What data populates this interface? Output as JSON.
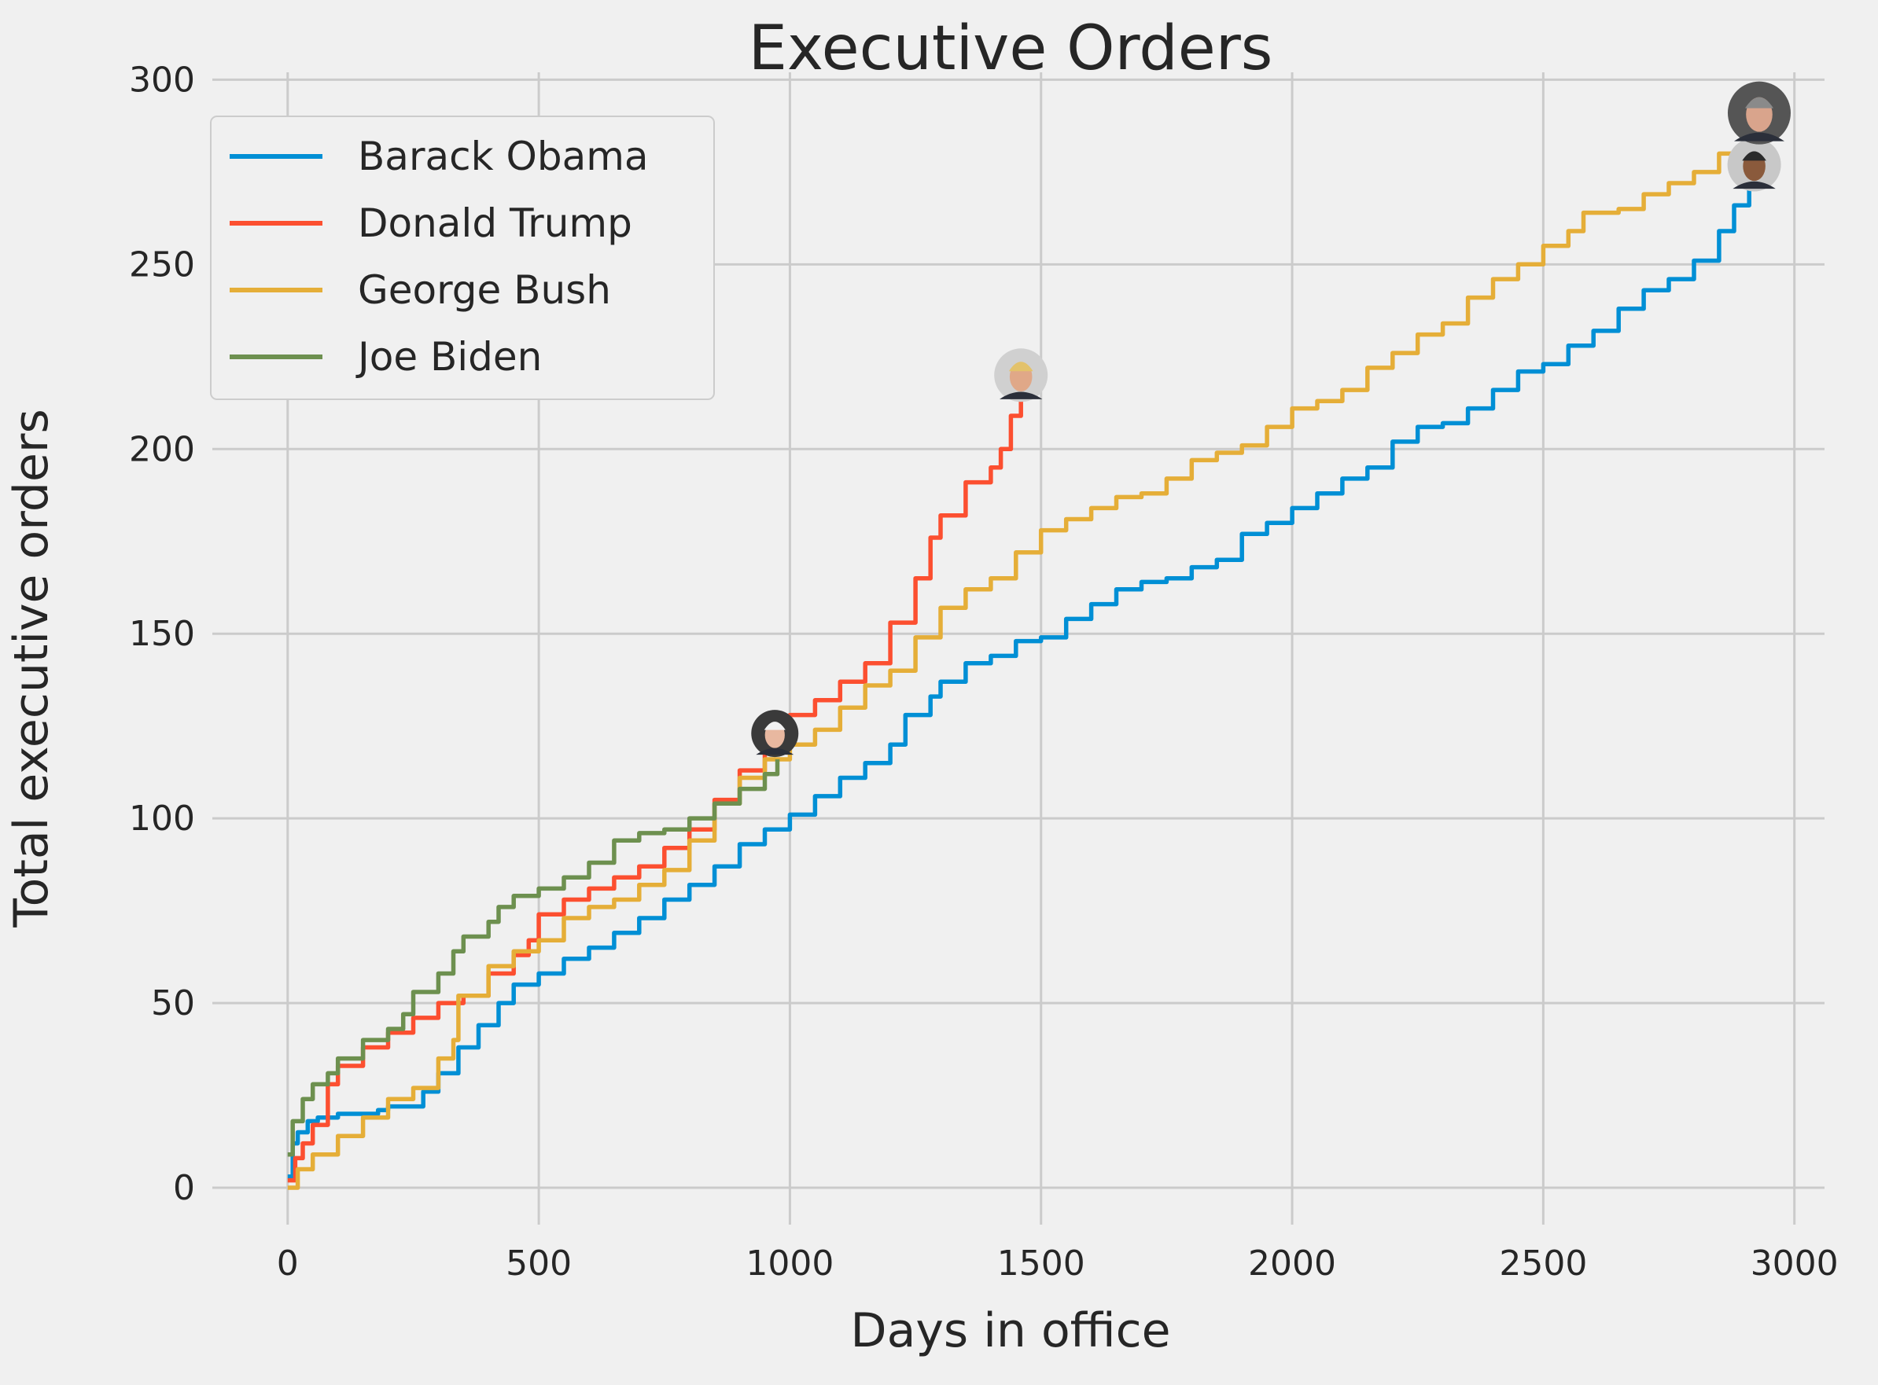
{
  "chart_data": {
    "type": "line",
    "title": "Executive Orders",
    "xlabel": "Days in office",
    "ylabel": "Total executive orders",
    "xlim": [
      -150,
      3060
    ],
    "ylim": [
      -10,
      302
    ],
    "xticks": [
      0,
      500,
      1000,
      1500,
      2000,
      2500,
      3000
    ],
    "yticks": [
      0,
      50,
      100,
      150,
      200,
      250,
      300
    ],
    "grid": true,
    "legend_position": "top-left",
    "series": [
      {
        "name": "Barack Obama",
        "color": "#008fd5",
        "icon": "obama-portrait",
        "points": [
          [
            0,
            3
          ],
          [
            10,
            12
          ],
          [
            20,
            15
          ],
          [
            40,
            18
          ],
          [
            60,
            19
          ],
          [
            100,
            20
          ],
          [
            180,
            21
          ],
          [
            200,
            22
          ],
          [
            250,
            22
          ],
          [
            270,
            26
          ],
          [
            300,
            31
          ],
          [
            340,
            38
          ],
          [
            380,
            44
          ],
          [
            420,
            50
          ],
          [
            450,
            55
          ],
          [
            500,
            58
          ],
          [
            550,
            62
          ],
          [
            600,
            65
          ],
          [
            650,
            69
          ],
          [
            700,
            73
          ],
          [
            750,
            78
          ],
          [
            800,
            82
          ],
          [
            850,
            87
          ],
          [
            900,
            93
          ],
          [
            950,
            97
          ],
          [
            1000,
            101
          ],
          [
            1050,
            106
          ],
          [
            1100,
            111
          ],
          [
            1150,
            115
          ],
          [
            1200,
            120
          ],
          [
            1230,
            128
          ],
          [
            1280,
            133
          ],
          [
            1300,
            137
          ],
          [
            1350,
            142
          ],
          [
            1400,
            144
          ],
          [
            1450,
            148
          ],
          [
            1500,
            149
          ],
          [
            1550,
            154
          ],
          [
            1600,
            158
          ],
          [
            1650,
            162
          ],
          [
            1700,
            164
          ],
          [
            1750,
            165
          ],
          [
            1800,
            168
          ],
          [
            1850,
            170
          ],
          [
            1900,
            177
          ],
          [
            1950,
            180
          ],
          [
            2000,
            184
          ],
          [
            2050,
            188
          ],
          [
            2100,
            192
          ],
          [
            2150,
            195
          ],
          [
            2200,
            202
          ],
          [
            2250,
            206
          ],
          [
            2300,
            207
          ],
          [
            2350,
            211
          ],
          [
            2400,
            216
          ],
          [
            2450,
            221
          ],
          [
            2500,
            223
          ],
          [
            2550,
            228
          ],
          [
            2600,
            232
          ],
          [
            2650,
            238
          ],
          [
            2700,
            243
          ],
          [
            2750,
            246
          ],
          [
            2800,
            251
          ],
          [
            2850,
            259
          ],
          [
            2880,
            266
          ],
          [
            2910,
            276
          ]
        ]
      },
      {
        "name": "Donald Trump",
        "color": "#fc4f30",
        "icon": "trump-portrait",
        "points": [
          [
            0,
            2
          ],
          [
            15,
            8
          ],
          [
            30,
            12
          ],
          [
            50,
            17
          ],
          [
            80,
            28
          ],
          [
            100,
            33
          ],
          [
            150,
            38
          ],
          [
            200,
            42
          ],
          [
            250,
            46
          ],
          [
            300,
            50
          ],
          [
            350,
            52
          ],
          [
            400,
            58
          ],
          [
            450,
            63
          ],
          [
            480,
            67
          ],
          [
            500,
            74
          ],
          [
            550,
            78
          ],
          [
            600,
            81
          ],
          [
            650,
            84
          ],
          [
            700,
            87
          ],
          [
            750,
            92
          ],
          [
            800,
            97
          ],
          [
            850,
            105
          ],
          [
            900,
            113
          ],
          [
            950,
            120
          ],
          [
            1000,
            128
          ],
          [
            1050,
            132
          ],
          [
            1100,
            137
          ],
          [
            1150,
            142
          ],
          [
            1200,
            153
          ],
          [
            1250,
            165
          ],
          [
            1280,
            176
          ],
          [
            1300,
            182
          ],
          [
            1350,
            191
          ],
          [
            1400,
            195
          ],
          [
            1420,
            200
          ],
          [
            1440,
            209
          ],
          [
            1460,
            218
          ]
        ]
      },
      {
        "name": "George Bush",
        "color": "#e5ae38",
        "icon": "bush-portrait",
        "points": [
          [
            0,
            0
          ],
          [
            20,
            5
          ],
          [
            50,
            9
          ],
          [
            100,
            14
          ],
          [
            150,
            19
          ],
          [
            200,
            24
          ],
          [
            250,
            27
          ],
          [
            300,
            35
          ],
          [
            330,
            40
          ],
          [
            340,
            52
          ],
          [
            400,
            60
          ],
          [
            450,
            64
          ],
          [
            500,
            67
          ],
          [
            550,
            73
          ],
          [
            600,
            76
          ],
          [
            650,
            78
          ],
          [
            700,
            82
          ],
          [
            750,
            86
          ],
          [
            800,
            94
          ],
          [
            850,
            104
          ],
          [
            900,
            111
          ],
          [
            950,
            116
          ],
          [
            1000,
            120
          ],
          [
            1050,
            124
          ],
          [
            1100,
            130
          ],
          [
            1150,
            136
          ],
          [
            1200,
            140
          ],
          [
            1250,
            149
          ],
          [
            1300,
            157
          ],
          [
            1350,
            162
          ],
          [
            1400,
            165
          ],
          [
            1450,
            172
          ],
          [
            1500,
            178
          ],
          [
            1550,
            181
          ],
          [
            1600,
            184
          ],
          [
            1650,
            187
          ],
          [
            1700,
            188
          ],
          [
            1750,
            192
          ],
          [
            1800,
            197
          ],
          [
            1850,
            199
          ],
          [
            1900,
            201
          ],
          [
            1950,
            206
          ],
          [
            2000,
            211
          ],
          [
            2050,
            213
          ],
          [
            2100,
            216
          ],
          [
            2150,
            222
          ],
          [
            2200,
            226
          ],
          [
            2250,
            231
          ],
          [
            2300,
            234
          ],
          [
            2350,
            241
          ],
          [
            2400,
            246
          ],
          [
            2450,
            250
          ],
          [
            2500,
            255
          ],
          [
            2550,
            259
          ],
          [
            2580,
            264
          ],
          [
            2650,
            265
          ],
          [
            2700,
            269
          ],
          [
            2750,
            272
          ],
          [
            2800,
            275
          ],
          [
            2850,
            280
          ],
          [
            2900,
            286
          ],
          [
            2920,
            288
          ]
        ]
      },
      {
        "name": "Joe Biden",
        "color": "#6d904f",
        "icon": "biden-portrait",
        "points": [
          [
            0,
            9
          ],
          [
            10,
            18
          ],
          [
            30,
            24
          ],
          [
            50,
            28
          ],
          [
            80,
            31
          ],
          [
            100,
            35
          ],
          [
            150,
            40
          ],
          [
            200,
            43
          ],
          [
            230,
            47
          ],
          [
            250,
            53
          ],
          [
            300,
            58
          ],
          [
            330,
            64
          ],
          [
            350,
            68
          ],
          [
            400,
            72
          ],
          [
            420,
            76
          ],
          [
            450,
            79
          ],
          [
            500,
            81
          ],
          [
            550,
            84
          ],
          [
            600,
            88
          ],
          [
            650,
            94
          ],
          [
            700,
            96
          ],
          [
            750,
            97
          ],
          [
            800,
            100
          ],
          [
            850,
            104
          ],
          [
            900,
            108
          ],
          [
            950,
            112
          ],
          [
            975,
            116
          ]
        ]
      }
    ]
  }
}
